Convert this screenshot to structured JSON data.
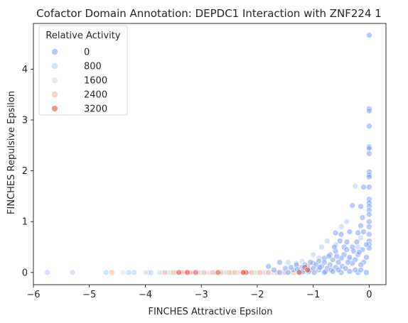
{
  "chart_data": {
    "type": "scatter",
    "title": "Cofactor Domain Annotation: DEPDC1 Interaction with ZNF224 1",
    "xlabel": "FINCHES Attractive Epsilon",
    "ylabel": "FINCHES Repulsive Epsilon",
    "xlim": [
      -6.0,
      0.3
    ],
    "ylim": [
      -0.24,
      4.9
    ],
    "xticks": [
      -6,
      -5,
      -4,
      -3,
      -2,
      -1,
      0
    ],
    "yticks": [
      0,
      1,
      2,
      3,
      4
    ],
    "grid": false,
    "legend": {
      "title": "Relative Activity",
      "placement": "top-left",
      "entries": [
        {
          "label": "0",
          "color": "#7b9ff9"
        },
        {
          "label": "800",
          "color": "#b3cdfb"
        },
        {
          "label": "1600",
          "color": "#dddcdc"
        },
        {
          "label": "2400",
          "color": "#f5b69a"
        },
        {
          "label": "3200",
          "color": "#d75445"
        }
      ]
    },
    "points_blue": [
      [
        0,
        4.67
      ],
      [
        0,
        3.22
      ],
      [
        0,
        3.18
      ],
      [
        0,
        2.88
      ],
      [
        0,
        2.47
      ],
      [
        0,
        2.44
      ],
      [
        0,
        2.34
      ],
      [
        0,
        1.98
      ],
      [
        0,
        1.92
      ],
      [
        0,
        1.88
      ],
      [
        0,
        1.68
      ],
      [
        0,
        1.44
      ],
      [
        0,
        1.37
      ],
      [
        0,
        1.3
      ],
      [
        0,
        1.22
      ],
      [
        0,
        1.14
      ],
      [
        0,
        1.0
      ],
      [
        0,
        0.9
      ],
      [
        0,
        0.75
      ],
      [
        0,
        0.62
      ],
      [
        0,
        0.55
      ],
      [
        0,
        0.48
      ],
      [
        -0.1,
        1.68
      ],
      [
        -0.15,
        1.3
      ],
      [
        -0.12,
        1.08
      ],
      [
        -0.15,
        0.92
      ],
      [
        -0.2,
        0.78
      ],
      [
        -0.1,
        0.8
      ],
      [
        -0.3,
        1.32
      ],
      [
        -0.35,
        0.8
      ],
      [
        -0.4,
        0.6
      ],
      [
        -0.5,
        0.75
      ],
      [
        -0.45,
        0.5
      ],
      [
        -0.3,
        0.5
      ],
      [
        -0.22,
        0.6
      ],
      [
        -0.6,
        0.78
      ],
      [
        -0.6,
        0.42
      ],
      [
        -0.7,
        0.35
      ],
      [
        -0.8,
        0.28
      ],
      [
        -0.9,
        0.22
      ],
      [
        -1.0,
        0.18
      ],
      [
        -1.1,
        0.12
      ],
      [
        -0.05,
        0.3
      ],
      [
        -0.1,
        0.2
      ],
      [
        -0.15,
        0.15
      ],
      [
        -0.2,
        0.35
      ],
      [
        -0.25,
        0.25
      ],
      [
        -0.3,
        0.18
      ],
      [
        -0.35,
        0.3
      ],
      [
        -0.4,
        0.45
      ],
      [
        -0.45,
        0.35
      ],
      [
        -0.5,
        0.28
      ],
      [
        -0.55,
        0.2
      ],
      [
        -0.6,
        0.1
      ],
      [
        -0.65,
        0.25
      ],
      [
        -0.7,
        0.15
      ],
      [
        -0.75,
        0.08
      ],
      [
        -0.8,
        0.2
      ],
      [
        -0.85,
        0.12
      ],
      [
        -0.9,
        0.05
      ],
      [
        -0.95,
        0.15
      ],
      [
        -1.0,
        0.08
      ],
      [
        -1.05,
        0.2
      ],
      [
        -1.1,
        0.05
      ],
      [
        -1.15,
        0.15
      ],
      [
        -1.2,
        0.1
      ],
      [
        -1.25,
        0.02
      ],
      [
        -1.3,
        0.15
      ],
      [
        -1.35,
        0.05
      ],
      [
        -1.4,
        0.1
      ],
      [
        -1.5,
        0.08
      ],
      [
        -1.6,
        0.2
      ],
      [
        -1.7,
        0.05
      ],
      [
        -1.8,
        0.12
      ],
      [
        -0.05,
        0.55
      ],
      [
        -0.12,
        0.45
      ],
      [
        -0.18,
        0.4
      ],
      [
        -0.28,
        0.42
      ],
      [
        -0.38,
        0.2
      ],
      [
        -0.48,
        0.12
      ],
      [
        -0.58,
        0.32
      ],
      [
        -0.68,
        0.05
      ],
      [
        -0.78,
        0.02
      ],
      [
        -0.88,
        0.1
      ],
      [
        -0.98,
        0.0
      ],
      [
        -1.08,
        0.02
      ],
      [
        -1.18,
        0.02
      ],
      [
        -1.28,
        0.06
      ],
      [
        -1.45,
        0.0
      ],
      [
        -1.6,
        0.0
      ],
      [
        -0.05,
        0.0
      ],
      [
        -0.2,
        0.0
      ],
      [
        -0.35,
        0.02
      ],
      [
        -0.5,
        0.0
      ],
      [
        -0.65,
        0.02
      ],
      [
        -0.8,
        0.0
      ],
      [
        -0.25,
        0.05
      ],
      [
        -0.42,
        0.08
      ],
      [
        -0.15,
        0.05
      ],
      [
        -0.55,
        0.05
      ],
      [
        -0.72,
        0.32
      ],
      [
        -0.62,
        0.5
      ],
      [
        -0.52,
        0.62
      ]
    ],
    "points_light": [
      [
        -5.75,
        0.0
      ],
      [
        -5.3,
        0.0
      ],
      [
        -4.7,
        0.0
      ],
      [
        -4.3,
        0.0
      ],
      [
        -4.2,
        0.0
      ],
      [
        -3.95,
        0.0
      ],
      [
        -3.9,
        0.0
      ],
      [
        -3.7,
        0.0
      ],
      [
        -3.6,
        0.0
      ],
      [
        -3.45,
        0.0
      ],
      [
        -3.3,
        0.0
      ],
      [
        -3.15,
        0.0
      ],
      [
        -3.0,
        0.0
      ],
      [
        -2.9,
        0.0
      ],
      [
        -2.75,
        0.0
      ],
      [
        -2.6,
        0.0
      ],
      [
        -2.45,
        0.0
      ],
      [
        -2.3,
        0.0
      ],
      [
        -2.15,
        0.0
      ],
      [
        -2.0,
        0.0
      ],
      [
        -1.85,
        0.0
      ],
      [
        -1.7,
        0.0
      ],
      [
        -1.55,
        0.0
      ],
      [
        -1.45,
        0.2
      ],
      [
        -1.3,
        0.18
      ],
      [
        -1.2,
        0.22
      ],
      [
        -1.0,
        0.35
      ],
      [
        -0.85,
        0.5
      ],
      [
        -0.75,
        0.62
      ],
      [
        -0.6,
        0.55
      ],
      [
        -0.5,
        0.9
      ],
      [
        -0.4,
        1.0
      ],
      [
        -0.25,
        1.7
      ],
      [
        -0.35,
        0.25
      ],
      [
        -0.2,
        0.5
      ],
      [
        -0.15,
        0.68
      ],
      [
        -0.9,
        0.28
      ]
    ],
    "points_grey": [
      [
        -4.4,
        0.0
      ],
      [
        -4.0,
        0.0
      ],
      [
        -3.75,
        0.0
      ],
      [
        -3.55,
        0.0
      ],
      [
        -3.25,
        0.0
      ],
      [
        -3.05,
        0.0
      ],
      [
        -2.85,
        0.0
      ],
      [
        -2.55,
        0.0
      ],
      [
        -2.35,
        0.0
      ],
      [
        -2.05,
        0.0
      ],
      [
        -1.9,
        0.0
      ],
      [
        -1.75,
        0.0
      ],
      [
        -1.62,
        0.0
      ],
      [
        -1.4,
        0.0
      ],
      [
        -1.25,
        0.0
      ],
      [
        -1.1,
        0.0
      ]
    ],
    "points_peach": [
      [
        -4.6,
        0.0
      ],
      [
        -3.65,
        0.0
      ],
      [
        -3.5,
        0.0
      ],
      [
        -3.35,
        0.0
      ],
      [
        -3.2,
        0.0
      ],
      [
        -2.95,
        0.0
      ],
      [
        -2.8,
        0.0
      ],
      [
        -2.65,
        0.0
      ],
      [
        -2.5,
        0.0
      ],
      [
        -2.4,
        0.0
      ],
      [
        -2.25,
        0.0
      ],
      [
        -2.1,
        0.0
      ],
      [
        -1.95,
        0.0
      ],
      [
        -1.8,
        0.0
      ],
      [
        -1.65,
        0.0
      ],
      [
        -1.5,
        0.0
      ],
      [
        -1.35,
        0.0
      ],
      [
        -1.2,
        0.0
      ],
      [
        -1.05,
        0.05
      ]
    ],
    "points_red": [
      [
        -3.4,
        0.0
      ],
      [
        -3.25,
        0.0
      ],
      [
        -3.1,
        0.0
      ],
      [
        -2.7,
        0.0
      ],
      [
        -2.2,
        0.0
      ],
      [
        -2.25,
        0.0
      ],
      [
        -1.25,
        0.0
      ],
      [
        -1.15,
        0.1
      ],
      [
        -1.1,
        0.05
      ]
    ]
  }
}
